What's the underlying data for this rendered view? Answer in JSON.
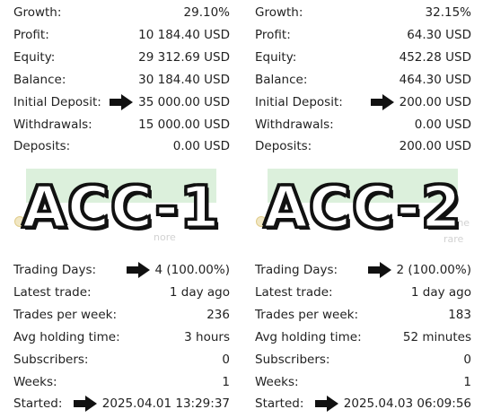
{
  "accounts": [
    {
      "id_label": "ACC-1",
      "stats_top": [
        {
          "label": "Growth:",
          "value": "29.10%"
        },
        {
          "label": "Profit:",
          "value": "10 184.40 USD"
        },
        {
          "label": "Equity:",
          "value": "29 312.69 USD"
        },
        {
          "label": "Balance:",
          "value": "30 184.40 USD"
        },
        {
          "label": "Initial Deposit:",
          "value": "35 000.00 USD",
          "arrow": true
        },
        {
          "label": "Withdrawals:",
          "value": "15 000.00 USD"
        },
        {
          "label": "Deposits:",
          "value": "0.00 USD"
        }
      ],
      "banner_partial_text": "r",
      "hint_partial_text": "nore",
      "stats_bottom": [
        {
          "label": "Trading Days:",
          "value": "4 (100.00%)",
          "arrow": true
        },
        {
          "label": "Latest trade:",
          "value": "1 day ago"
        },
        {
          "label": "Trades per week:",
          "value": "236"
        },
        {
          "label": "Avg holding time:",
          "value": "3 hours"
        },
        {
          "label": "Subscribers:",
          "value": "0"
        },
        {
          "label": "Weeks:",
          "value": "1"
        },
        {
          "label": "Started:",
          "value": "2025.04.01 13:29:37",
          "arrow": true
        }
      ]
    },
    {
      "id_label": "ACC-2",
      "stats_top": [
        {
          "label": "Growth:",
          "value": "32.15%"
        },
        {
          "label": "Profit:",
          "value": "64.30 USD"
        },
        {
          "label": "Equity:",
          "value": "452.28 USD"
        },
        {
          "label": "Balance:",
          "value": "464.30 USD"
        },
        {
          "label": "Initial Deposit:",
          "value": "200.00 USD",
          "arrow": true
        },
        {
          "label": "Withdrawals:",
          "value": "0.00 USD"
        },
        {
          "label": "Deposits:",
          "value": "200.00 USD"
        }
      ],
      "banner_partial_text": "r",
      "hint_partial_text": "the",
      "hint_partial_text_2": "rare",
      "stats_bottom": [
        {
          "label": "Trading Days:",
          "value": "2 (100.00%)",
          "arrow": true
        },
        {
          "label": "Latest trade:",
          "value": "1 day ago"
        },
        {
          "label": "Trades per week:",
          "value": "183"
        },
        {
          "label": "Avg holding time:",
          "value": "52 minutes"
        },
        {
          "label": "Subscribers:",
          "value": "0"
        },
        {
          "label": "Weeks:",
          "value": "1"
        },
        {
          "label": "Started:",
          "value": "2025.04.03 06:09:56",
          "arrow": true
        }
      ]
    }
  ],
  "colors": {
    "banner": "#dcf0dc",
    "arrow": "#111111",
    "text": "#222222"
  }
}
